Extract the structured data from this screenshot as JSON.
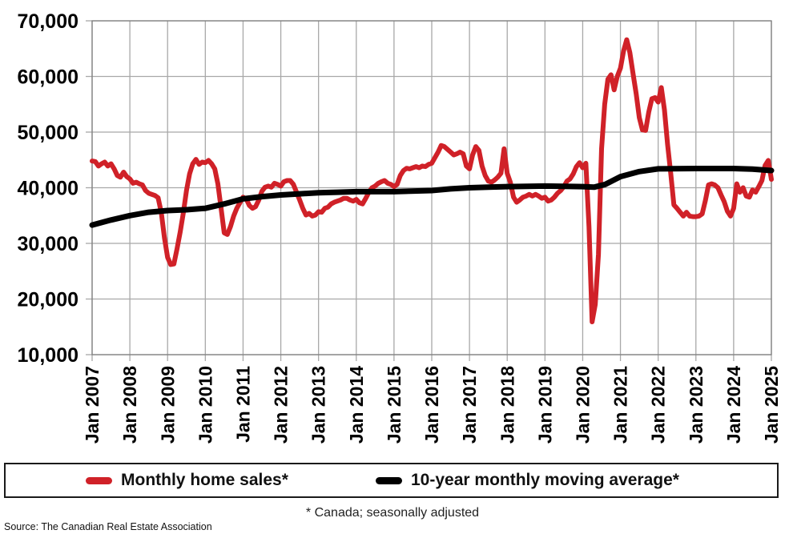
{
  "chart_data": {
    "type": "line",
    "title": "",
    "xlabel": "",
    "ylabel": "",
    "grid": true,
    "gridline_color": "#a8a8a8",
    "frame_color": "#7f7f7f",
    "label_color": "#000000",
    "x_min_year": 2007,
    "x_max_year": 2025,
    "x_ticks": [
      "Jan 2007",
      "Jan 2008",
      "Jan 2009",
      "Jan 2010",
      "Jan 2011",
      "Jan 2012",
      "Jan 2013",
      "Jan 2014",
      "Jan 2015",
      "Jan 2016",
      "Jan 2017",
      "Jan 2018",
      "Jan 2019",
      "Jan 2020",
      "Jan 2021",
      "Jan 2022",
      "Jan 2023",
      "Jan 2024",
      "Jan 2025"
    ],
    "y_min": 10000,
    "y_max": 70000,
    "y_tick_interval": 10000,
    "y_ticks": [
      "10,000",
      "20,000",
      "30,000",
      "40,000",
      "50,000",
      "60,000",
      "70,000"
    ],
    "series": [
      {
        "name": "Monthly home sales*",
        "color": "#d02128",
        "stroke_width": 6,
        "start": "Jan 2007",
        "interval": "monthly",
        "values": [
          44800,
          44700,
          43900,
          44300,
          44600,
          43900,
          44300,
          43400,
          42200,
          41900,
          42800,
          42000,
          41600,
          40800,
          41000,
          40700,
          40500,
          39500,
          39000,
          38800,
          38600,
          38200,
          35500,
          31000,
          27500,
          26200,
          26300,
          29000,
          32000,
          35500,
          39500,
          42500,
          44300,
          45100,
          44200,
          44600,
          44500,
          44900,
          44300,
          43400,
          40700,
          36300,
          31900,
          31600,
          33000,
          34900,
          36300,
          37300,
          38300,
          38000,
          36800,
          36300,
          36600,
          37800,
          39400,
          40100,
          40300,
          40100,
          40800,
          40600,
          40300,
          41100,
          41300,
          41300,
          40600,
          39200,
          37800,
          36300,
          35100,
          35400,
          34900,
          35100,
          35700,
          35600,
          36300,
          36500,
          37100,
          37400,
          37600,
          37800,
          38100,
          38100,
          37800,
          37600,
          37900,
          37300,
          37100,
          38100,
          39200,
          40000,
          40300,
          40800,
          41100,
          41300,
          40800,
          40600,
          40200,
          40600,
          42200,
          43100,
          43500,
          43400,
          43600,
          43800,
          43600,
          43900,
          43800,
          44200,
          44400,
          45400,
          46400,
          47600,
          47400,
          46900,
          46400,
          45900,
          46100,
          46400,
          46100,
          43900,
          43400,
          45900,
          47400,
          46700,
          43900,
          42200,
          41200,
          41000,
          41400,
          41900,
          42600,
          47000,
          42600,
          41000,
          38300,
          37400,
          37800,
          38300,
          38500,
          38800,
          38500,
          38800,
          38500,
          38100,
          38300,
          37600,
          37800,
          38300,
          39000,
          39500,
          40200,
          41200,
          41600,
          42500,
          43800,
          44500,
          43600,
          44400,
          33000,
          15900,
          19000,
          28000,
          47000,
          55000,
          59500,
          60300,
          57600,
          60000,
          61500,
          64600,
          66600,
          64300,
          60500,
          56900,
          52600,
          50400,
          50300,
          53600,
          56000,
          56200,
          55400,
          58000,
          54000,
          47800,
          42500,
          36900,
          36300,
          35600,
          34900,
          35600,
          34900,
          34800,
          34800,
          34900,
          35300,
          37700,
          40500,
          40700,
          40500,
          40000,
          38700,
          37500,
          35800,
          34900,
          36300,
          40700,
          39200,
          40000,
          38500,
          38300,
          39600,
          39200,
          40200,
          41300,
          44000,
          44900,
          41500
        ]
      },
      {
        "name": "10-year monthly moving average*",
        "color": "#000000",
        "stroke_width": 7,
        "points": [
          [
            2007.0,
            33300
          ],
          [
            2007.5,
            34200
          ],
          [
            2008.0,
            35000
          ],
          [
            2008.5,
            35600
          ],
          [
            2009.0,
            35900
          ],
          [
            2009.5,
            36050
          ],
          [
            2010.0,
            36300
          ],
          [
            2010.5,
            37100
          ],
          [
            2011.0,
            38000
          ],
          [
            2011.5,
            38400
          ],
          [
            2012.0,
            38700
          ],
          [
            2012.5,
            38900
          ],
          [
            2013.0,
            39100
          ],
          [
            2013.5,
            39200
          ],
          [
            2014.0,
            39300
          ],
          [
            2015.0,
            39300
          ],
          [
            2016.0,
            39500
          ],
          [
            2016.5,
            39800
          ],
          [
            2017.0,
            40000
          ],
          [
            2017.5,
            40100
          ],
          [
            2018.0,
            40200
          ],
          [
            2019.0,
            40300
          ],
          [
            2019.5,
            40250
          ],
          [
            2020.0,
            40200
          ],
          [
            2020.3,
            40100
          ],
          [
            2020.6,
            40600
          ],
          [
            2021.0,
            42000
          ],
          [
            2021.5,
            42900
          ],
          [
            2022.0,
            43400
          ],
          [
            2023.0,
            43450
          ],
          [
            2024.0,
            43450
          ],
          [
            2024.5,
            43350
          ],
          [
            2025.0,
            43100
          ]
        ]
      }
    ]
  },
  "legend": {
    "items": [
      {
        "label": "Monthly home sales*",
        "color": "#d02128"
      },
      {
        "label": "10-year monthly moving average*",
        "color": "#000000"
      }
    ]
  },
  "footnote": "* Canada; seasonally adjusted",
  "source": "Source: The Canadian Real Estate Association"
}
